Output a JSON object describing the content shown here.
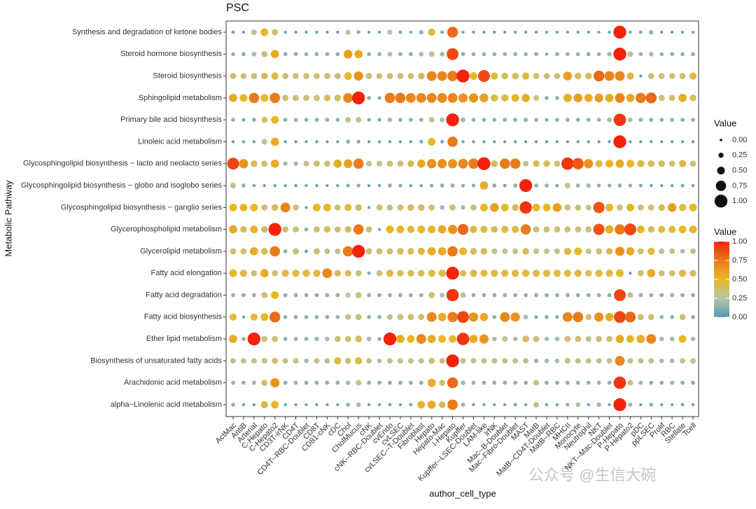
{
  "chart_data": {
    "type": "dot",
    "title": "PSC",
    "x_label": "author_cell_type",
    "y_label": "Metabolic Pathway",
    "watermark": "公众号 @生信大碗",
    "x_categories": [
      "ActMac",
      "AntiB",
      "Arterial",
      "C-Hepato",
      "C-Hepato2",
      "CD3T-irNK",
      "CD4T",
      "CD4T--RBC-Doublet",
      "CD8T",
      "CD81-cNK",
      "cDC",
      "Chol",
      "CholMucus",
      "cNK",
      "cNK--RBC-Doublet",
      "cvEndo",
      "cvLSEC",
      "cvLSEC--T-Doublet",
      "Fibroblast",
      "Hepato",
      "Hepato-Mac",
      "I-Hepato",
      "Kupffer",
      "Kupffer--LSEC-Doublet",
      "LAM-like",
      "lrNK",
      "Mac--B-Doublet",
      "Mac--Fibro-Doublet",
      "MAST",
      "MatB",
      "MatB--CD4T-Doublet",
      "MatB--RBC",
      "MHCII",
      "Monocyte",
      "Neutrophil",
      "NKT",
      "NKT--Mac-Doublet",
      "P-Hepato",
      "P-Hepato2",
      "pDC",
      "ppLSEC",
      "Prolif",
      "RBC",
      "Stellate",
      "Tcell"
    ],
    "y_categories": [
      "Synthesis and degradation of ketone bodies",
      "Steroid hormone biosynthesis",
      "Steroid biosynthesis",
      "Sphingolipid metabolism",
      "Primary bile acid biosynthesis",
      "Linoleic acid metabolism",
      "Glycosphingolipid biosynthesis − lacto and neolacto series",
      "Glycosphingolipid biosynthesis − globo and isoglobo series",
      "Glycosphingolipid biosynthesis − ganglio series",
      "Glycerophospholipid metabolism",
      "Glycerolipid metabolism",
      "Fatty acid elongation",
      "Fatty acid degradation",
      "Fatty acid biosynthesis",
      "Ether lipid metabolism",
      "Biosynthesis of unsaturated fatty acids",
      "Arachidonic acid metabolism",
      "alpha−Linolenic acid metabolism"
    ],
    "values": [
      [
        0.1,
        0.05,
        0.3,
        0.5,
        0.35,
        0.05,
        0.05,
        0.05,
        0.05,
        0.05,
        0.05,
        0.25,
        0.1,
        0.05,
        0.05,
        0.25,
        0.1,
        0.05,
        0.2,
        0.45,
        0.1,
        0.8,
        0.05,
        0.05,
        0.05,
        0.05,
        0.05,
        0.05,
        0.05,
        0.05,
        0.05,
        0.05,
        0.05,
        0.05,
        0.05,
        0.05,
        0.05,
        1.0,
        0.05,
        0.1,
        0.2,
        0.05,
        0.05,
        0.05,
        0.05
      ],
      [
        0.15,
        0.15,
        0.2,
        0.35,
        0.55,
        0.15,
        0.15,
        0.15,
        0.15,
        0.15,
        0.15,
        0.6,
        0.55,
        0.15,
        0.15,
        0.2,
        0.15,
        0.15,
        0.2,
        0.3,
        0.2,
        0.9,
        0.15,
        0.15,
        0.15,
        0.15,
        0.15,
        0.15,
        0.15,
        0.15,
        0.05,
        0.15,
        0.15,
        0.15,
        0.15,
        0.15,
        0.2,
        1.0,
        0.3,
        0.15,
        0.2,
        0.15,
        0.15,
        0.15,
        0.15
      ],
      [
        0.35,
        0.35,
        0.35,
        0.4,
        0.45,
        0.35,
        0.35,
        0.35,
        0.35,
        0.35,
        0.35,
        0.5,
        0.65,
        0.35,
        0.35,
        0.35,
        0.35,
        0.35,
        0.4,
        0.7,
        0.7,
        0.75,
        1.0,
        0.5,
        0.9,
        0.45,
        0.4,
        0.4,
        0.45,
        0.35,
        0.35,
        0.35,
        0.6,
        0.4,
        0.4,
        0.8,
        0.7,
        0.7,
        0.45,
        0.05,
        0.35,
        0.35,
        0.35,
        0.35,
        0.45
      ],
      [
        0.55,
        0.5,
        0.75,
        0.5,
        0.75,
        0.35,
        0.35,
        0.35,
        0.35,
        0.4,
        0.4,
        0.7,
        1.0,
        0.15,
        0.1,
        0.75,
        0.75,
        0.7,
        0.7,
        0.7,
        0.7,
        0.7,
        0.65,
        0.65,
        0.6,
        0.45,
        0.45,
        0.5,
        0.55,
        0.3,
        0.15,
        0.15,
        0.55,
        0.6,
        0.55,
        0.6,
        0.55,
        0.7,
        0.55,
        0.75,
        0.8,
        0.35,
        0.35,
        0.55,
        0.4
      ],
      [
        0.15,
        0.1,
        0.15,
        0.35,
        0.5,
        0.15,
        0.15,
        0.15,
        0.15,
        0.15,
        0.15,
        0.3,
        0.3,
        0.1,
        0.1,
        0.2,
        0.15,
        0.15,
        0.15,
        0.3,
        0.2,
        1.0,
        0.2,
        0.15,
        0.15,
        0.15,
        0.15,
        0.15,
        0.2,
        0.15,
        0.1,
        0.15,
        0.15,
        0.15,
        0.15,
        0.15,
        0.2,
        0.95,
        0.2,
        0.15,
        0.15,
        0.15,
        0.15,
        0.15,
        0.15
      ],
      [
        0.05,
        0.05,
        0.05,
        0.3,
        0.55,
        0.05,
        0.05,
        0.05,
        0.05,
        0.05,
        0.05,
        0.15,
        0.1,
        0.05,
        0.05,
        0.05,
        0.05,
        0.05,
        0.1,
        0.5,
        0.1,
        0.75,
        0.05,
        0.05,
        0.05,
        0.05,
        0.05,
        0.05,
        0.05,
        0.05,
        0.05,
        0.05,
        0.05,
        0.05,
        0.05,
        0.05,
        0.05,
        1.0,
        0.05,
        0.05,
        0.05,
        0.05,
        0.05,
        0.05,
        0.05
      ],
      [
        0.9,
        0.65,
        0.4,
        0.35,
        0.55,
        0.2,
        0.2,
        0.3,
        0.35,
        0.35,
        0.55,
        0.6,
        0.75,
        0.3,
        0.3,
        0.35,
        0.35,
        0.4,
        0.55,
        0.65,
        0.65,
        0.65,
        0.7,
        0.75,
        1.0,
        0.4,
        0.75,
        0.75,
        0.3,
        0.4,
        0.4,
        0.35,
        0.95,
        0.85,
        0.65,
        0.45,
        0.5,
        0.55,
        0.5,
        0.45,
        0.4,
        0.4,
        0.35,
        0.45,
        0.35
      ],
      [
        0.3,
        0.15,
        0.05,
        0.05,
        0.05,
        0.05,
        0.05,
        0.05,
        0.05,
        0.05,
        0.05,
        0.1,
        0.1,
        0.05,
        0.05,
        0.15,
        0.1,
        0.05,
        0.05,
        0.1,
        0.15,
        0.15,
        0.1,
        0.1,
        0.55,
        0.15,
        0.1,
        0.15,
        1.0,
        0.15,
        0.15,
        0.1,
        0.3,
        0.15,
        0.2,
        0.1,
        0.1,
        0.15,
        0.1,
        0.1,
        0.05,
        0.05,
        0.05,
        0.1,
        0.05
      ],
      [
        0.5,
        0.5,
        0.5,
        0.35,
        0.4,
        0.7,
        0.35,
        0.05,
        0.5,
        0.5,
        0.35,
        0.45,
        0.4,
        0.05,
        0.35,
        0.35,
        0.35,
        0.4,
        0.4,
        0.35,
        0.2,
        0.35,
        0.2,
        0.35,
        0.5,
        0.6,
        0.5,
        0.4,
        0.95,
        0.5,
        0.5,
        0.6,
        0.35,
        0.35,
        0.3,
        0.85,
        0.5,
        0.35,
        0.5,
        0.35,
        0.35,
        0.4,
        0.6,
        0.45,
        0.5
      ],
      [
        0.55,
        0.4,
        0.5,
        0.4,
        1.0,
        0.35,
        0.35,
        0.15,
        0.35,
        0.4,
        0.35,
        0.4,
        0.75,
        0.35,
        0.05,
        0.5,
        0.5,
        0.45,
        0.5,
        0.5,
        0.55,
        0.65,
        0.8,
        0.45,
        0.45,
        0.4,
        0.45,
        0.45,
        0.75,
        0.35,
        0.35,
        0.35,
        0.35,
        0.35,
        0.35,
        0.85,
        0.55,
        0.75,
        0.9,
        0.5,
        0.4,
        0.45,
        0.45,
        0.5,
        0.5
      ],
      [
        0.35,
        0.35,
        0.55,
        0.4,
        0.75,
        0.15,
        0.35,
        0.1,
        0.35,
        0.3,
        0.3,
        0.75,
        1.0,
        0.35,
        0.35,
        0.35,
        0.4,
        0.4,
        0.45,
        0.55,
        0.55,
        0.75,
        0.5,
        0.4,
        0.4,
        0.3,
        0.3,
        0.3,
        0.4,
        0.3,
        0.3,
        0.3,
        0.45,
        0.5,
        0.3,
        0.35,
        0.4,
        0.65,
        0.55,
        0.35,
        0.45,
        0.3,
        0.3,
        0.2,
        0.3
      ],
      [
        0.5,
        0.45,
        0.35,
        0.55,
        0.35,
        0.45,
        0.45,
        0.45,
        0.45,
        0.7,
        0.4,
        0.4,
        0.35,
        0.1,
        0.35,
        0.45,
        0.4,
        0.4,
        0.4,
        0.45,
        0.45,
        1.0,
        0.4,
        0.45,
        0.45,
        0.45,
        0.45,
        0.45,
        0.45,
        0.45,
        0.45,
        0.45,
        0.45,
        0.45,
        0.4,
        0.45,
        0.45,
        0.5,
        0.05,
        0.35,
        0.55,
        0.35,
        0.35,
        0.45,
        0.4
      ],
      [
        0.15,
        0.15,
        0.15,
        0.35,
        0.5,
        0.15,
        0.15,
        0.15,
        0.15,
        0.15,
        0.15,
        0.25,
        0.35,
        0.15,
        0.15,
        0.15,
        0.15,
        0.15,
        0.15,
        0.35,
        0.2,
        0.95,
        0.3,
        0.15,
        0.15,
        0.15,
        0.15,
        0.15,
        0.15,
        0.15,
        0.15,
        0.15,
        0.15,
        0.15,
        0.15,
        0.15,
        0.15,
        0.9,
        0.3,
        0.15,
        0.15,
        0.15,
        0.15,
        0.15,
        0.15
      ],
      [
        0.45,
        0.05,
        0.45,
        0.5,
        0.8,
        0.15,
        0.15,
        0.15,
        0.15,
        0.15,
        0.15,
        0.3,
        0.35,
        0.15,
        0.15,
        0.3,
        0.35,
        0.35,
        0.35,
        0.7,
        0.55,
        0.75,
        0.9,
        0.65,
        0.55,
        0.15,
        0.7,
        0.65,
        0.2,
        0.1,
        0.15,
        0.1,
        0.7,
        0.75,
        0.35,
        0.65,
        0.55,
        0.9,
        0.8,
        0.35,
        0.35,
        0.15,
        0.15,
        0.35,
        0.15
      ],
      [
        0.55,
        0.15,
        1.0,
        0.35,
        0.35,
        0.15,
        0.15,
        0.15,
        0.2,
        0.2,
        0.35,
        0.35,
        0.4,
        0.2,
        0.15,
        1.0,
        0.55,
        0.5,
        0.7,
        0.55,
        0.5,
        0.5,
        0.95,
        0.55,
        0.65,
        0.2,
        0.3,
        0.2,
        0.4,
        0.35,
        0.2,
        0.2,
        0.35,
        0.35,
        0.3,
        0.35,
        0.35,
        0.55,
        0.5,
        0.55,
        0.7,
        0.2,
        0.2,
        0.5,
        0.2
      ],
      [
        0.3,
        0.3,
        0.3,
        0.3,
        0.35,
        0.3,
        0.3,
        0.2,
        0.3,
        0.3,
        0.45,
        0.35,
        0.45,
        0.3,
        0.2,
        0.3,
        0.3,
        0.3,
        0.3,
        0.35,
        0.3,
        1.0,
        0.3,
        0.3,
        0.3,
        0.3,
        0.3,
        0.3,
        0.3,
        0.2,
        0.2,
        0.2,
        0.3,
        0.3,
        0.3,
        0.3,
        0.3,
        0.7,
        0.3,
        0.3,
        0.3,
        0.2,
        0.2,
        0.3,
        0.3
      ],
      [
        0.15,
        0.15,
        0.15,
        0.35,
        0.65,
        0.15,
        0.15,
        0.15,
        0.15,
        0.15,
        0.15,
        0.2,
        0.3,
        0.15,
        0.15,
        0.15,
        0.15,
        0.15,
        0.15,
        0.55,
        0.35,
        0.8,
        0.2,
        0.15,
        0.15,
        0.15,
        0.15,
        0.15,
        0.15,
        0.3,
        0.15,
        0.15,
        0.15,
        0.15,
        0.15,
        0.15,
        0.15,
        0.95,
        0.3,
        0.15,
        0.15,
        0.15,
        0.15,
        0.15,
        0.15
      ],
      [
        0.15,
        0.05,
        0.05,
        0.45,
        0.5,
        0.05,
        0.05,
        0.05,
        0.05,
        0.05,
        0.05,
        0.15,
        0.2,
        0.05,
        0.05,
        0.1,
        0.05,
        0.1,
        0.5,
        0.55,
        0.4,
        0.75,
        0.15,
        0.05,
        0.05,
        0.05,
        0.05,
        0.1,
        0.05,
        0.3,
        0.05,
        0.05,
        0.1,
        0.2,
        0.05,
        0.2,
        0.05,
        1.0,
        0.15,
        0.05,
        0.15,
        0.05,
        0.05,
        0.1,
        0.05
      ]
    ],
    "clim": [
      0,
      1
    ],
    "colorscale": [
      "#4f9ab5",
      "#b9c4a5",
      "#e8b725",
      "#e97b1a",
      "#f5220a"
    ],
    "size_legend": {
      "title": "Value",
      "ticks": [
        {
          "value": 0,
          "label": "0.00"
        },
        {
          "value": 0.25,
          "label": "0.25"
        },
        {
          "value": 0.5,
          "label": "0.50"
        },
        {
          "value": 0.75,
          "label": "0.75"
        },
        {
          "value": 1,
          "label": "1.00"
        }
      ]
    },
    "color_legend": {
      "title": "Value",
      "ticks": [
        {
          "value": 1,
          "label": "1.00"
        },
        {
          "value": 0.75,
          "label": "0.75"
        },
        {
          "value": 0.5,
          "label": "0.50"
        },
        {
          "value": 0.25,
          "label": "0.25"
        },
        {
          "value": 0,
          "label": "0.00"
        }
      ]
    }
  }
}
